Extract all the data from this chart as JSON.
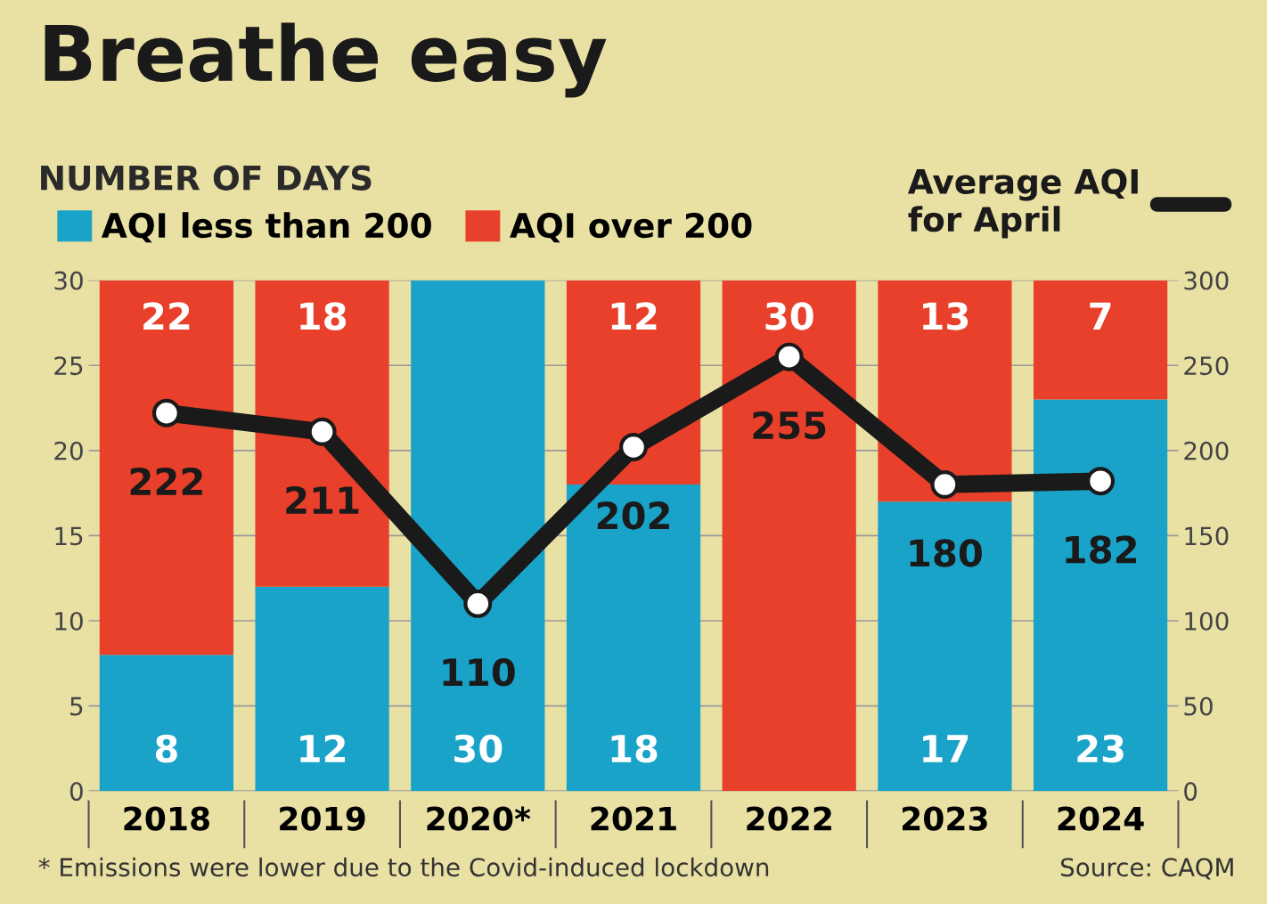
{
  "chart_data": {
    "type": "bar",
    "title": "Breathe easy",
    "ylabel": "NUMBER OF DAYS",
    "categories": [
      "2018",
      "2019",
      "2020*",
      "2021",
      "2022",
      "2023",
      "2024"
    ],
    "stacked": true,
    "series": [
      {
        "name": "AQI less than 200",
        "color": "#1aa3c9",
        "values": [
          8,
          12,
          30,
          18,
          0,
          17,
          23
        ],
        "value_labels": [
          "8",
          "12",
          "30",
          "18",
          null,
          "17",
          "23"
        ]
      },
      {
        "name": "AQI over 200",
        "color": "#e8402a",
        "values": [
          22,
          18,
          0,
          12,
          30,
          13,
          7
        ],
        "value_labels": [
          "22",
          "18",
          null,
          "12",
          "30",
          "13",
          "7"
        ]
      },
      {
        "name": "Average AQI\nfor April",
        "type": "line",
        "axis": "y2",
        "color": "#1a1a1a",
        "marker": "circle",
        "values": [
          222,
          211,
          110,
          202,
          255,
          180,
          182
        ],
        "value_labels": [
          "222",
          "211",
          "110",
          "202",
          "255",
          "180",
          "182"
        ]
      }
    ],
    "ylim": [
      0,
      30
    ],
    "yticks": [
      0,
      5,
      10,
      15,
      20,
      25,
      30
    ],
    "y2lim": [
      0,
      300
    ],
    "y2ticks": [
      0,
      50,
      100,
      150,
      200,
      250,
      300
    ],
    "grid": "y",
    "legend": "top",
    "annotations": [
      "* Emissions were lower due to the Covid-induced lockdown",
      "Source: CAQM"
    ]
  }
}
